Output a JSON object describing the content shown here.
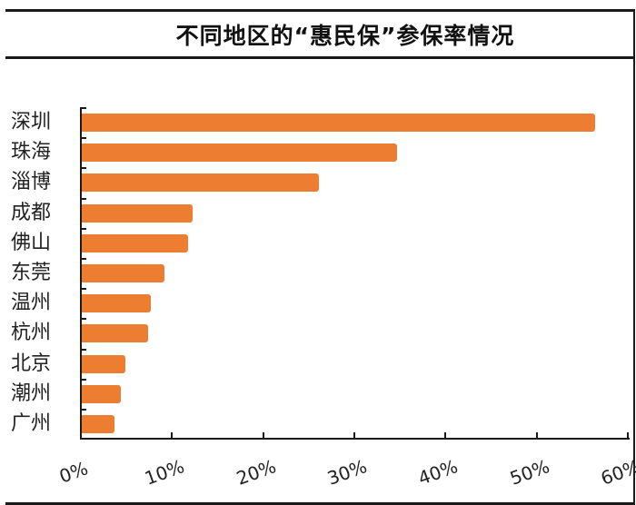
{
  "chart_data": {
    "type": "bar",
    "orientation": "horizontal",
    "title": "不同地区的“惠民保”参保率情况",
    "xlabel": "",
    "ylabel": "",
    "categories": [
      "深圳",
      "珠海",
      "淄博",
      "成都",
      "佛山",
      "东莞",
      "温州",
      "杭州",
      "北京",
      "潮州",
      "广州"
    ],
    "values": [
      56.4,
      34.7,
      26.1,
      12.3,
      11.8,
      9.2,
      7.7,
      7.4,
      4.9,
      4.4,
      3.7
    ],
    "unit": "%",
    "xlim": [
      0,
      60
    ],
    "xticks": [
      "0%",
      "10%",
      "20%",
      "30%",
      "40%",
      "50%",
      "60%"
    ],
    "grid": false,
    "legend": null,
    "bar_color": "#ED7D31"
  }
}
